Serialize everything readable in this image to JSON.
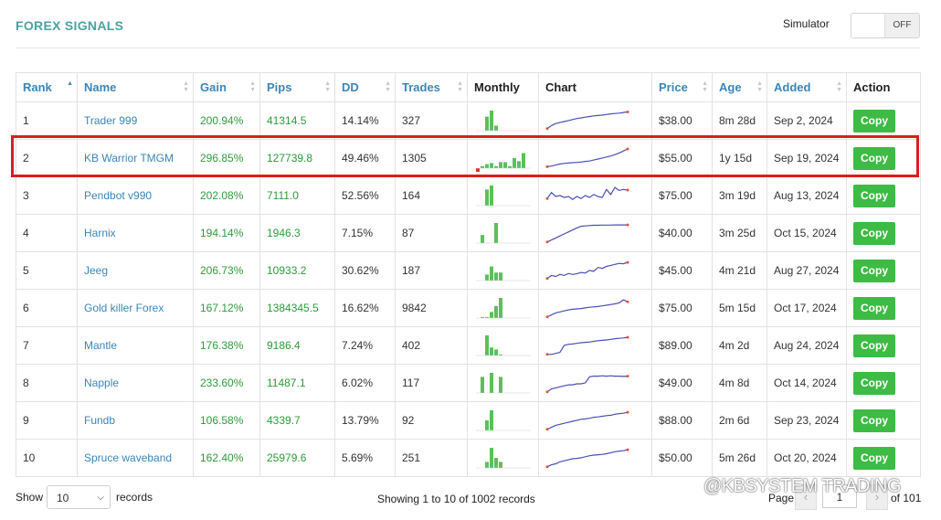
{
  "header": {
    "title": "FOREX SIGNALS",
    "simulator_label": "Simulator",
    "toggle_state": "OFF"
  },
  "columns": [
    "Rank",
    "Name",
    "Gain",
    "Pips",
    "DD",
    "Trades",
    "Monthly",
    "Chart",
    "Price",
    "Age",
    "Added",
    "Action"
  ],
  "colors": {
    "link": "#3b86b8",
    "green": "#2d9c3a",
    "button": "#3dbb45",
    "highlight": "#d91e1e",
    "title": "#4aa3a0"
  },
  "rows": [
    {
      "rank": "1",
      "name": "Trader 999",
      "gain": "200.94%",
      "pips": "41314.5",
      "dd": "14.14%",
      "trades": "327",
      "price": "$38.00",
      "age": "8m 28d",
      "added": "Sep 2, 2024",
      "action": "Copy",
      "monthly": [
        0,
        0,
        0.7,
        1.0,
        0.25,
        0,
        0,
        0,
        0,
        0,
        0,
        0
      ],
      "chart": [
        0.15,
        0.3,
        0.4,
        0.45,
        0.5,
        0.55,
        0.6,
        0.65,
        0.68,
        0.72,
        0.75,
        0.78,
        0.8,
        0.82,
        0.85,
        0.88,
        0.9,
        0.92,
        0.95,
        0.98
      ]
    },
    {
      "rank": "2",
      "name": "KB Warrior TMGM",
      "gain": "296.85%",
      "pips": "127739.8",
      "dd": "49.46%",
      "trades": "1305",
      "price": "$55.00",
      "age": "1y 15d",
      "added": "Sep 19, 2024",
      "action": "Copy",
      "monthly": [
        -0.6,
        0.1,
        0.2,
        0.25,
        0.1,
        0.3,
        0.3,
        0.1,
        0.5,
        0.35,
        0.75,
        0
      ],
      "chart": [
        0.12,
        0.15,
        0.2,
        0.25,
        0.28,
        0.3,
        0.32,
        0.33,
        0.35,
        0.38,
        0.4,
        0.45,
        0.5,
        0.55,
        0.6,
        0.65,
        0.72,
        0.8,
        0.9,
        1.0
      ]
    },
    {
      "rank": "3",
      "name": "Pendbot v990",
      "gain": "202.08%",
      "pips": "7111.0",
      "dd": "52.56%",
      "trades": "164",
      "price": "$75.00",
      "age": "3m 19d",
      "added": "Aug 13, 2024",
      "action": "Copy",
      "monthly": [
        0,
        0,
        0.8,
        1.0,
        0,
        0,
        0,
        0,
        0,
        0,
        0,
        0
      ],
      "chart": [
        0.4,
        0.7,
        0.5,
        0.55,
        0.45,
        0.5,
        0.35,
        0.5,
        0.4,
        0.55,
        0.45,
        0.6,
        0.5,
        0.45,
        0.85,
        0.6,
        0.95,
        0.8,
        0.85,
        0.82
      ]
    },
    {
      "rank": "4",
      "name": "Harnix",
      "gain": "194.14%",
      "pips": "1946.3",
      "dd": "7.15%",
      "trades": "87",
      "price": "$40.00",
      "age": "3m 25d",
      "added": "Oct 15, 2024",
      "action": "Copy",
      "monthly": [
        0,
        0.4,
        0,
        0,
        1.0,
        0,
        0,
        0,
        0,
        0,
        0,
        0
      ],
      "chart": [
        0.1,
        0.2,
        0.3,
        0.4,
        0.5,
        0.6,
        0.7,
        0.8,
        0.88,
        0.9,
        0.92,
        0.93,
        0.93,
        0.94,
        0.94,
        0.94,
        0.95,
        0.95,
        0.95,
        0.95
      ]
    },
    {
      "rank": "5",
      "name": "Jeeg",
      "gain": "206.73%",
      "pips": "10933.2",
      "dd": "30.62%",
      "trades": "187",
      "price": "$45.00",
      "age": "4m 21d",
      "added": "Aug 27, 2024",
      "action": "Copy",
      "monthly": [
        0,
        0,
        0.3,
        0.7,
        0.4,
        0.4,
        0,
        0,
        0,
        0,
        0,
        0
      ],
      "chart": [
        0.15,
        0.3,
        0.25,
        0.35,
        0.3,
        0.4,
        0.35,
        0.38,
        0.45,
        0.42,
        0.55,
        0.5,
        0.7,
        0.65,
        0.75,
        0.8,
        0.85,
        0.9,
        0.88,
        0.95
      ]
    },
    {
      "rank": "6",
      "name": "Gold killer Forex",
      "gain": "167.12%",
      "pips": "1384345.5",
      "dd": "16.62%",
      "trades": "9842",
      "price": "$75.00",
      "age": "5m 15d",
      "added": "Oct 17, 2024",
      "action": "Copy",
      "monthly": [
        0,
        0.05,
        0.05,
        0.3,
        0.6,
        1.0,
        0,
        0,
        0,
        0,
        0,
        0
      ],
      "chart": [
        0.1,
        0.2,
        0.3,
        0.35,
        0.4,
        0.45,
        0.48,
        0.5,
        0.52,
        0.55,
        0.58,
        0.6,
        0.62,
        0.65,
        0.68,
        0.72,
        0.75,
        0.8,
        0.95,
        0.85
      ]
    },
    {
      "rank": "7",
      "name": "Mantle",
      "gain": "176.38%",
      "pips": "9186.4",
      "dd": "7.24%",
      "trades": "402",
      "price": "$89.00",
      "age": "4m 2d",
      "added": "Aug 24, 2024",
      "action": "Copy",
      "monthly": [
        0,
        0,
        1.0,
        0.4,
        0.3,
        0.05,
        0,
        0,
        0,
        0,
        0,
        0
      ],
      "chart": [
        0.1,
        0.1,
        0.15,
        0.2,
        0.55,
        0.6,
        0.62,
        0.65,
        0.68,
        0.7,
        0.72,
        0.75,
        0.78,
        0.8,
        0.82,
        0.85,
        0.88,
        0.9,
        0.92,
        0.95
      ]
    },
    {
      "rank": "8",
      "name": "Napple",
      "gain": "233.60%",
      "pips": "11487.1",
      "dd": "6.02%",
      "trades": "117",
      "price": "$49.00",
      "age": "4m 8d",
      "added": "Oct 14, 2024",
      "action": "Copy",
      "monthly": [
        0,
        0.8,
        0,
        1.0,
        0,
        0.8,
        0,
        0,
        0,
        0,
        0,
        0
      ],
      "chart": [
        0.1,
        0.25,
        0.3,
        0.35,
        0.4,
        0.45,
        0.45,
        0.5,
        0.5,
        0.55,
        0.85,
        0.88,
        0.88,
        0.9,
        0.88,
        0.9,
        0.88,
        0.88,
        0.87,
        0.88
      ]
    },
    {
      "rank": "9",
      "name": "Fundb",
      "gain": "106.58%",
      "pips": "4339.7",
      "dd": "13.79%",
      "trades": "92",
      "price": "$88.00",
      "age": "2m 6d",
      "added": "Sep 23, 2024",
      "action": "Copy",
      "monthly": [
        0,
        0,
        0.5,
        1.0,
        0,
        0,
        0,
        0,
        0,
        0,
        0,
        0
      ],
      "chart": [
        0.1,
        0.2,
        0.3,
        0.35,
        0.4,
        0.45,
        0.5,
        0.55,
        0.6,
        0.62,
        0.65,
        0.7,
        0.72,
        0.75,
        0.78,
        0.8,
        0.85,
        0.88,
        0.9,
        0.95
      ]
    },
    {
      "rank": "10",
      "name": "Spruce waveband",
      "gain": "162.40%",
      "pips": "25979.6",
      "dd": "5.69%",
      "trades": "251",
      "price": "$50.00",
      "age": "5m 26d",
      "added": "Oct 20, 2024",
      "action": "Copy",
      "monthly": [
        0,
        0,
        0.3,
        1.0,
        0.5,
        0.3,
        0,
        0,
        0,
        0,
        0,
        0
      ],
      "chart": [
        0.1,
        0.2,
        0.25,
        0.35,
        0.4,
        0.45,
        0.5,
        0.52,
        0.55,
        0.6,
        0.65,
        0.68,
        0.7,
        0.72,
        0.75,
        0.8,
        0.85,
        0.88,
        0.9,
        0.95
      ]
    }
  ],
  "footer": {
    "show_label": "Show",
    "records_select": "10",
    "records_label": "records",
    "showing_text": "Showing 1 to 10 of 1002 records",
    "page_label": "Page",
    "page_value": "1",
    "of_label": "of 101",
    "prev_icon": "‹",
    "next_icon": "›"
  },
  "watermark": "@KBSYSTEM TRADING"
}
